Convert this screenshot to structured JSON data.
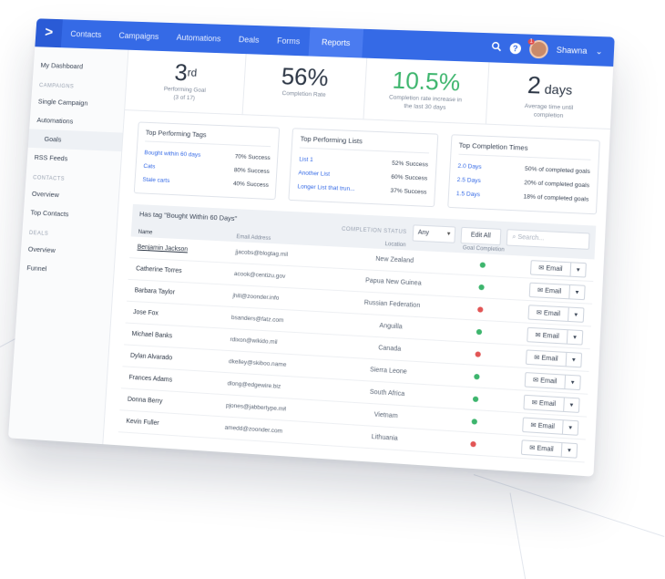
{
  "nav": {
    "logo": ">",
    "items": [
      "Contacts",
      "Campaigns",
      "Automations",
      "Deals",
      "Forms",
      "Reports"
    ],
    "active": "Reports",
    "user_name": "Shawna",
    "user_caret": "⌄",
    "badge": "1",
    "search_icon": "search-icon",
    "help_label": "?",
    "accent": "#356ae6"
  },
  "sidebar": {
    "dashboard": "My Dashboard",
    "campaigns_head": "CAMPAIGNS",
    "single_campaign": "Single Campaign",
    "automations": "Automations",
    "goals": "Goals",
    "rss_feeds": "RSS Feeds",
    "contacts_head": "CONTACTS",
    "contacts_overview": "Overview",
    "top_contacts": "Top Contacts",
    "deals_head": "DEALS",
    "deals_overview": "Overview",
    "funnel": "Funnel"
  },
  "stats": [
    {
      "value": "3",
      "sup": "rd",
      "label": "Performing Goal",
      "sublabel": "(3 of 17)"
    },
    {
      "value": "56%",
      "label": "Completion Rate"
    },
    {
      "value": "10.5%",
      "label": "Completion rate increase in",
      "sublabel": "the last 30 days"
    },
    {
      "value": "2",
      "unit": " days",
      "label": "Average time until",
      "sublabel": "completion"
    }
  ],
  "cards": {
    "tags": {
      "title": "Top Performing Tags",
      "rows": [
        {
          "name": "Bought within 60 days",
          "value": "70% Success"
        },
        {
          "name": "Cats",
          "value": "80% Success"
        },
        {
          "name": "Stale carts",
          "value": "40% Success"
        }
      ]
    },
    "lists": {
      "title": "Top Performing Lists",
      "rows": [
        {
          "name": "List 1",
          "value": "52% Success"
        },
        {
          "name": "Another List",
          "value": "60% Success"
        },
        {
          "name": "Longer List that trun...",
          "value": "37% Success"
        }
      ]
    },
    "times": {
      "title": "Top Completion Times",
      "rows": [
        {
          "name": "2.0 Days",
          "value": "50% of completed goals"
        },
        {
          "name": "2.5 Days",
          "value": "20% of completed goals"
        },
        {
          "name": "1.5 Days",
          "value": "18% of completed goals"
        }
      ]
    }
  },
  "table": {
    "title": "Has tag \"Bought Within 60 Days\"",
    "status_label": "COMPLETION STATUS",
    "filter_value": "Any",
    "edit_all": "Edit All",
    "search_placeholder": "Search...",
    "columns": {
      "name": "Name",
      "email": "Email Address",
      "location": "Location",
      "goal": "Goal Completion"
    },
    "email_label": "Email",
    "email_icon": "✉",
    "caret": "▾",
    "rows": [
      {
        "name": "Benjamin Jackson",
        "email": "jjacobs@blogtag.mil",
        "location": "New Zealand",
        "done": true
      },
      {
        "name": "Catherine Torres",
        "email": "acook@centizu.gov",
        "location": "Papua New Guinea",
        "done": true
      },
      {
        "name": "Barbara Taylor",
        "email": "jhill@zoonder.info",
        "location": "Russian Federation",
        "done": false
      },
      {
        "name": "Jose Fox",
        "email": "bsanders@fatz.com",
        "location": "Anguilla",
        "done": true
      },
      {
        "name": "Michael Banks",
        "email": "rdixon@wikido.mil",
        "location": "Canada",
        "done": false
      },
      {
        "name": "Dylan Alvarado",
        "email": "dkelley@skiboo.name",
        "location": "Sierra Leone",
        "done": true
      },
      {
        "name": "Frances Adams",
        "email": "dlong@edgewire.biz",
        "location": "South Africa",
        "done": true
      },
      {
        "name": "Donna Berry",
        "email": "pjones@jabbertype.mil",
        "location": "Vietnam",
        "done": true
      },
      {
        "name": "Kevin Fuller",
        "email": "amedd@zoonder.com",
        "location": "Lithuania",
        "done": false
      }
    ]
  }
}
